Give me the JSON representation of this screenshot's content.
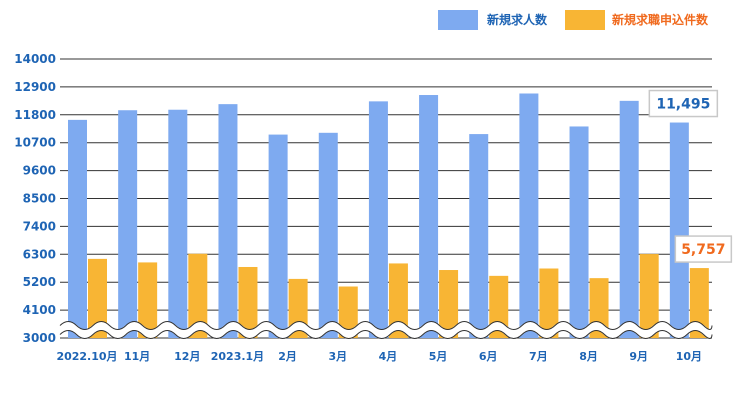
{
  "chart_data": {
    "type": "bar",
    "categories": [
      "2022.10月",
      "11月",
      "12月",
      "2023.1月",
      "2月",
      "3月",
      "4月",
      "5月",
      "6月",
      "7月",
      "8月",
      "9月",
      "10月"
    ],
    "series": [
      {
        "name": "新規求人数",
        "color": "#7eaaf0",
        "values": [
          11600,
          11980,
          12000,
          12220,
          11020,
          11090,
          12330,
          12580,
          11040,
          12640,
          11340,
          12350,
          11495
        ]
      },
      {
        "name": "新規求職申込件数",
        "color": "#f8b534",
        "values": [
          6120,
          5980,
          6320,
          5800,
          5330,
          5030,
          5940,
          5680,
          5450,
          5740,
          5360,
          6310,
          5757
        ]
      }
    ],
    "yticks": [
      "14000",
      "12900",
      "11800",
      "10700",
      "9600",
      "8500",
      "7400",
      "6300",
      "5200",
      "4100",
      "3000"
    ],
    "ylim": [
      3000,
      14000
    ],
    "axis_break": true,
    "grid": true,
    "legend_position": "top-right",
    "annotations": [
      {
        "text": "11,495",
        "series": 0,
        "index": 12,
        "color": "#1e64b4"
      },
      {
        "text": "5,757",
        "series": 1,
        "index": 12,
        "color": "#f06a1e"
      }
    ]
  }
}
